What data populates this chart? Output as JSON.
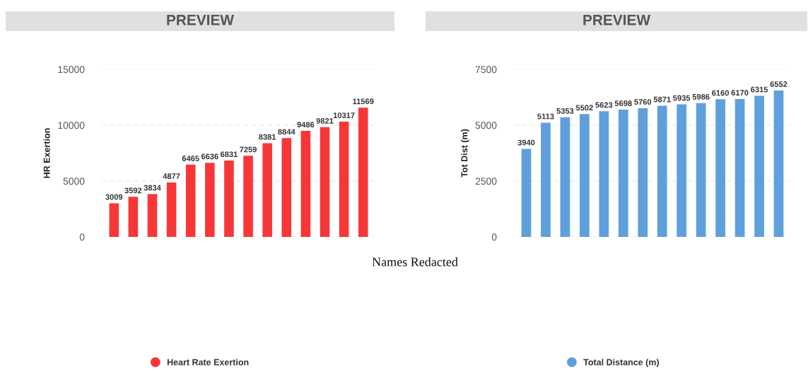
{
  "chart_data": [
    {
      "type": "bar",
      "title": "PREVIEW",
      "ylabel": "HR Exertion",
      "categories": [
        null,
        null,
        null,
        null,
        null,
        null,
        null,
        null,
        null,
        null,
        null,
        null,
        null,
        null
      ],
      "series": [
        {
          "name": "Heart Rate Exertion",
          "color": "#f83636",
          "values": [
            3009,
            3592,
            3834,
            4877,
            6465,
            6636,
            6831,
            7259,
            8381,
            8844,
            9486,
            9821,
            10317,
            11569
          ]
        }
      ],
      "ylim": [
        0,
        15000
      ],
      "yticks": [
        0,
        5000,
        10000,
        15000
      ],
      "grid": "y",
      "legend": "bottom",
      "data_labels": true,
      "annotations": [
        "Names Redacted"
      ]
    },
    {
      "type": "bar",
      "title": "PREVIEW",
      "ylabel": "Tot Dist (m)",
      "categories": [
        null,
        null,
        null,
        null,
        null,
        null,
        null,
        null,
        null,
        null,
        null,
        null,
        null,
        null
      ],
      "series": [
        {
          "name": "Total Distance (m)",
          "color": "#5fa0dc",
          "values": [
            3940,
            5113,
            5353,
            5502,
            5623,
            5698,
            5760,
            5871,
            5935,
            5986,
            6160,
            6170,
            6315,
            6552
          ]
        }
      ],
      "ylim": [
        0,
        7500
      ],
      "yticks": [
        0,
        2500,
        5000,
        7500
      ],
      "grid": "y",
      "legend": "bottom",
      "data_labels": true
    }
  ]
}
